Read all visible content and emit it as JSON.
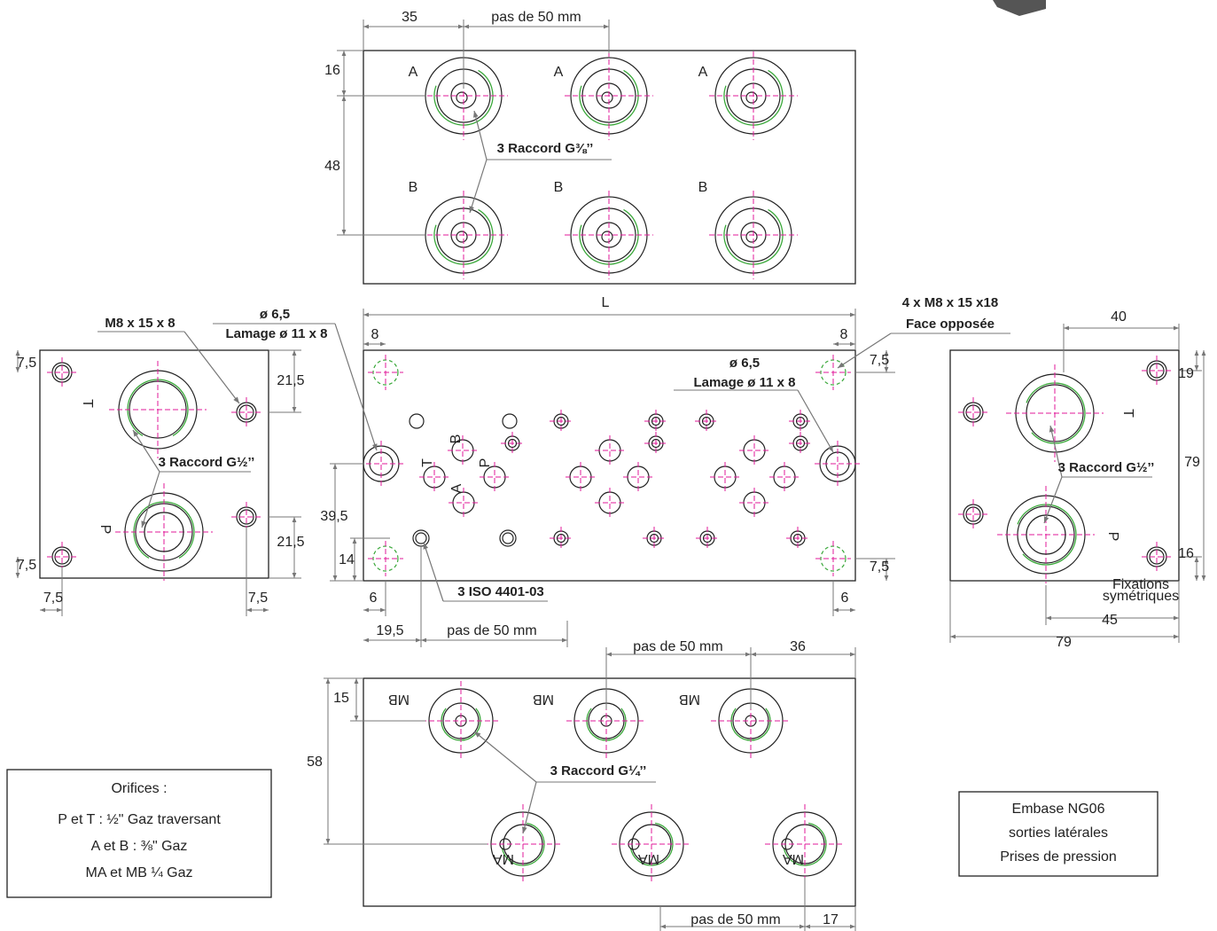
{
  "top_view": {
    "dimensions": [
      "35",
      "pas de 50 mm",
      "16",
      "48"
    ],
    "ports": [
      "A",
      "A",
      "A",
      "B",
      "B",
      "B"
    ],
    "callout": "3 Raccord G⅜’’"
  },
  "center_view": {
    "length": "L",
    "callout_left": [
      "ø 6,5",
      "Lamage ø 11 x 8"
    ],
    "callout_right": [
      "ø 6,5",
      "Lamage ø 11 x 8"
    ],
    "callout_fix": [
      "4 x M8 x 15 x18",
      "Face opposée"
    ],
    "callout_iso": "3 ISO 4401-03",
    "dimensions": [
      "8",
      "8",
      "7,5",
      "7,5",
      "39,5",
      "14",
      "6",
      "6",
      "19,5",
      "pas de 50 mm"
    ],
    "ports": [
      "T",
      "B",
      "P",
      "A"
    ]
  },
  "left_view": {
    "callout_fix": "M8 x 15 x 8",
    "callout": "3 Raccord G½’’",
    "dimensions": [
      "7,5",
      "7,5",
      "21,5",
      "21,5",
      "7,5",
      "7,5"
    ],
    "ports": [
      "T",
      "P"
    ]
  },
  "right_view": {
    "callout": "3 Raccord G½’’",
    "note": [
      "Fixations",
      "symétriques"
    ],
    "dimensions": [
      "40",
      "19",
      "79",
      "16",
      "45",
      "79"
    ],
    "ports": [
      "T",
      "P"
    ]
  },
  "bottom_view": {
    "callout": "3 Raccord G¼’’",
    "dimensions": [
      "pas de 50 mm",
      "36",
      "15",
      "58",
      "pas de 50 mm",
      "17"
    ],
    "ports": [
      "MB",
      "MB",
      "MB",
      "MA",
      "MA",
      "MA"
    ]
  },
  "legend": {
    "title": "Orifices :",
    "lines": [
      "P et T : ½\" Gaz traversant",
      "A et B :  ⅜\" Gaz",
      "MA et MB ¼ Gaz"
    ]
  },
  "caption": {
    "lines": [
      "Embase NG06",
      "sorties latérales",
      "Prises de pression"
    ]
  }
}
